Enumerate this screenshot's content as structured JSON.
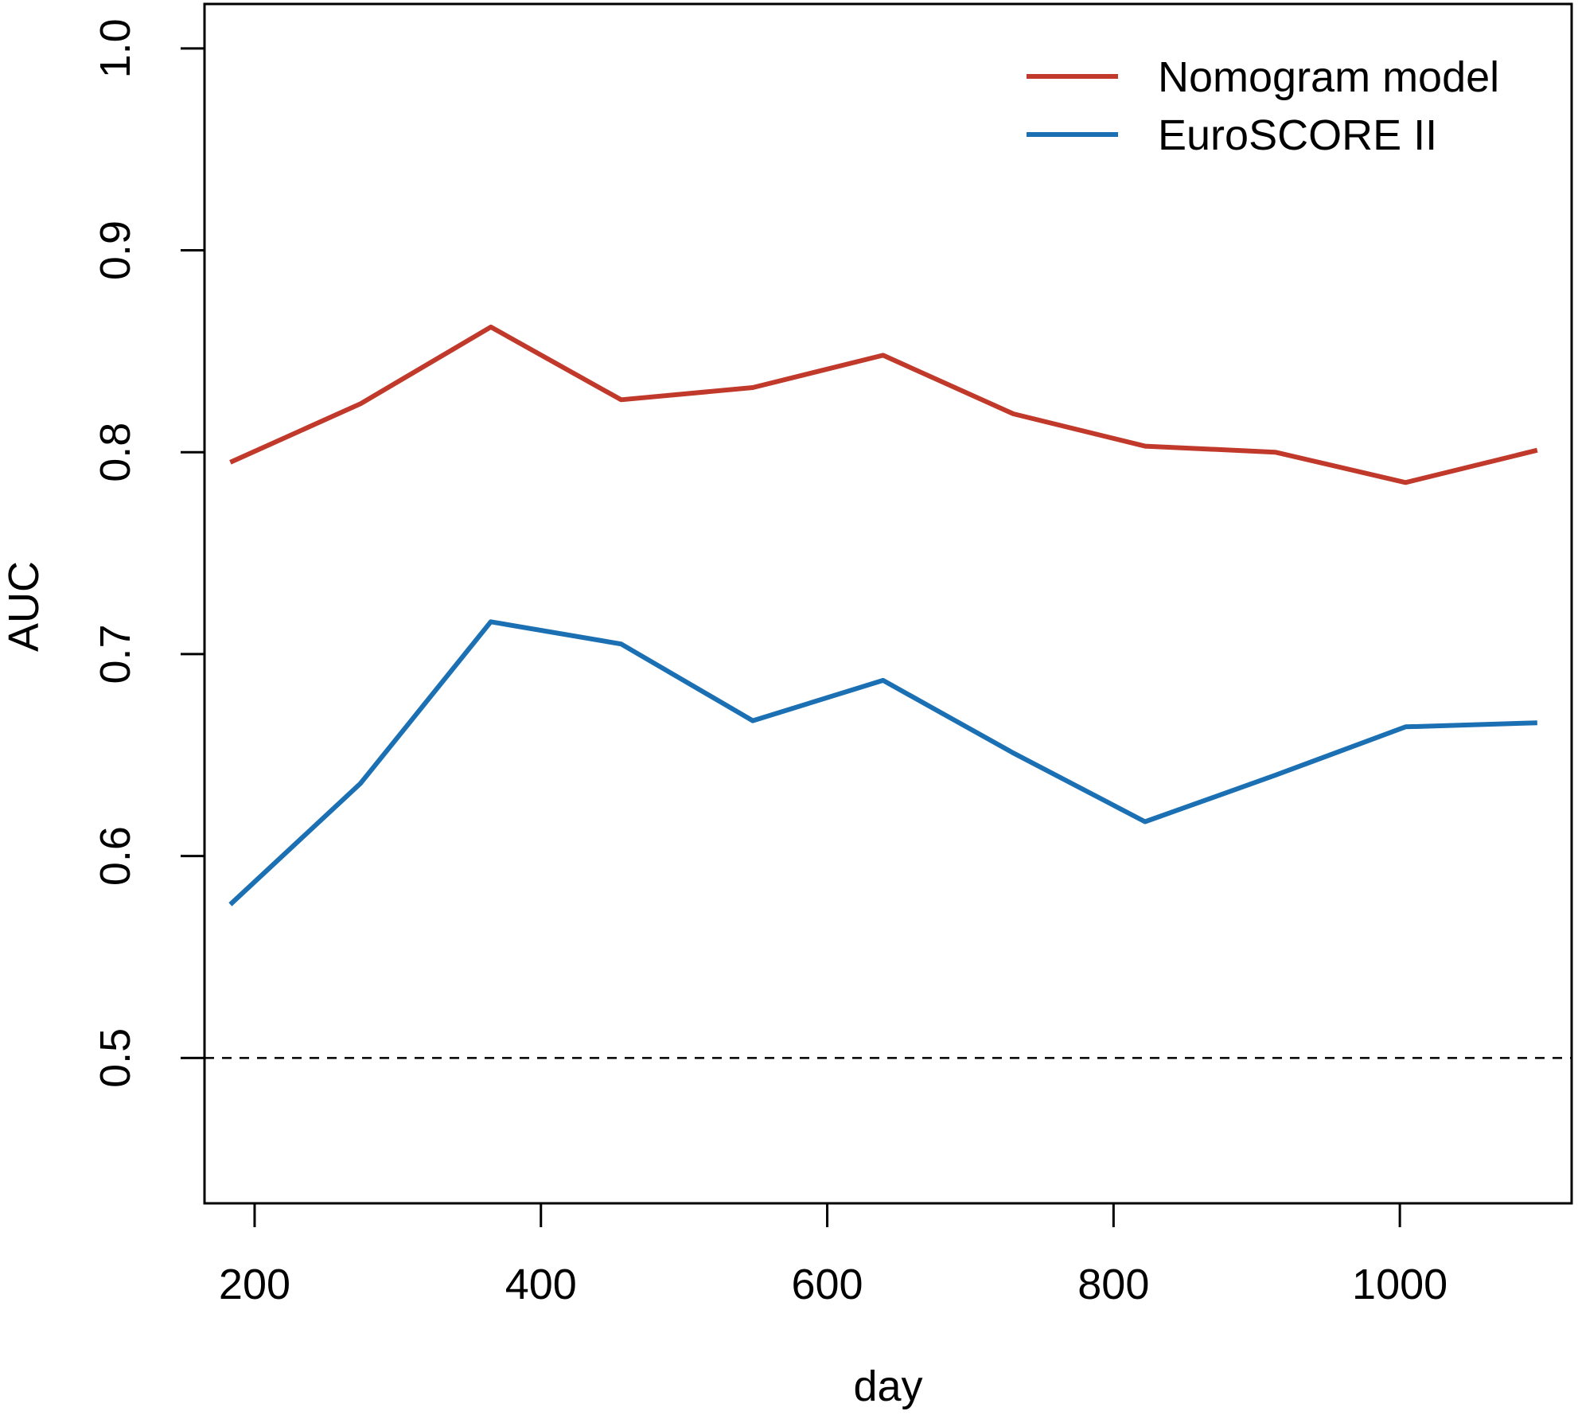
{
  "chart_data": {
    "type": "line",
    "title": "",
    "xlabel": "day",
    "ylabel": "AUC",
    "xlim": [
      165,
      1120
    ],
    "ylim": [
      0.428,
      1.022
    ],
    "xticks": [
      200,
      400,
      600,
      800,
      1000
    ],
    "xtick_labels": [
      "200",
      "400",
      "600",
      "800",
      "1000"
    ],
    "yticks": [
      0.5,
      0.6,
      0.7,
      0.8,
      0.9,
      1.0
    ],
    "ytick_labels": [
      "0.5",
      "0.6",
      "0.7",
      "0.8",
      "0.9",
      "1.0"
    ],
    "grid": false,
    "legend_position": "top-right",
    "reference_line": {
      "y": 0.5,
      "style": "dashed",
      "color": "#000000"
    },
    "x": [
      183,
      274,
      365,
      456,
      548,
      639,
      730,
      822,
      913,
      1004,
      1096
    ],
    "series": [
      {
        "name": "Nomogram model",
        "color": "#C0392B",
        "values": [
          0.795,
          0.824,
          0.862,
          0.826,
          0.832,
          0.848,
          0.819,
          0.803,
          0.8,
          0.785,
          0.801
        ]
      },
      {
        "name": "EuroSCORE II",
        "color": "#1B6FB3",
        "values": [
          0.576,
          0.636,
          0.716,
          0.705,
          0.667,
          0.687,
          0.651,
          0.617,
          0.64,
          0.664,
          0.666
        ]
      }
    ]
  }
}
